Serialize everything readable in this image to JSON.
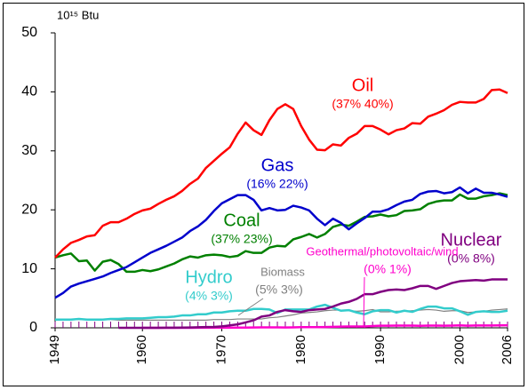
{
  "chart_data": {
    "type": "line",
    "y_label": "10¹⁵ Btu",
    "x": [
      1949,
      1950,
      1951,
      1952,
      1953,
      1954,
      1955,
      1956,
      1957,
      1958,
      1959,
      1960,
      1961,
      1962,
      1963,
      1964,
      1965,
      1966,
      1967,
      1968,
      1969,
      1970,
      1971,
      1972,
      1973,
      1974,
      1975,
      1976,
      1977,
      1978,
      1979,
      1980,
      1981,
      1982,
      1983,
      1984,
      1985,
      1986,
      1987,
      1988,
      1989,
      1990,
      1991,
      1992,
      1993,
      1994,
      1995,
      1996,
      1997,
      1998,
      1999,
      2000,
      2001,
      2002,
      2003,
      2004,
      2005,
      2006
    ],
    "xlim": [
      1949,
      2006
    ],
    "xticks": [
      1949,
      1960,
      1970,
      1980,
      1990,
      2000,
      2006
    ],
    "ylim": [
      0,
      50
    ],
    "yticks": [
      0,
      10,
      20,
      30,
      40,
      50
    ],
    "series": [
      {
        "name": "Oil",
        "share": "(37%  40%)",
        "color": "#ff0000",
        "values": [
          11.9,
          13.3,
          14.4,
          14.9,
          15.5,
          15.7,
          17.3,
          17.9,
          17.9,
          18.5,
          19.3,
          19.9,
          20.2,
          21.0,
          21.7,
          22.3,
          23.2,
          24.4,
          25.3,
          27.1,
          28.3,
          29.5,
          30.6,
          32.9,
          34.8,
          33.5,
          32.7,
          35.2,
          37.1,
          37.9,
          37.1,
          34.2,
          31.9,
          30.2,
          30.1,
          31.1,
          30.9,
          32.2,
          32.9,
          34.2,
          34.2,
          33.6,
          32.8,
          33.5,
          33.8,
          34.7,
          34.6,
          35.8,
          36.3,
          36.9,
          37.8,
          38.3,
          38.2,
          38.2,
          38.8,
          40.3,
          40.4,
          39.8
        ]
      },
      {
        "name": "Gas",
        "share": "(16%  22%)",
        "color": "#0000cc",
        "values": [
          5.1,
          5.9,
          7.0,
          7.5,
          7.9,
          8.3,
          8.7,
          9.3,
          9.8,
          10.3,
          11.1,
          11.9,
          12.7,
          13.3,
          13.9,
          14.6,
          15.3,
          16.4,
          17.2,
          18.3,
          19.8,
          21.1,
          21.8,
          22.5,
          22.5,
          21.7,
          19.9,
          20.3,
          19.9,
          20.0,
          20.7,
          20.4,
          19.9,
          18.5,
          17.4,
          18.5,
          17.8,
          16.7,
          17.7,
          18.6,
          19.7,
          19.7,
          20.1,
          20.8,
          21.4,
          21.7,
          22.7,
          23.1,
          23.2,
          22.8,
          23.0,
          23.8,
          22.8,
          23.6,
          22.9,
          22.9,
          22.6,
          22.2
        ]
      },
      {
        "name": "Coal",
        "share": "(37%  23%)",
        "color": "#008000",
        "values": [
          11.9,
          12.3,
          12.6,
          11.3,
          11.4,
          9.7,
          11.2,
          11.5,
          10.8,
          9.5,
          9.5,
          9.8,
          9.6,
          9.9,
          10.4,
          10.9,
          11.6,
          12.1,
          11.9,
          12.3,
          12.4,
          12.3,
          12.0,
          12.2,
          13.0,
          12.7,
          12.7,
          13.6,
          13.9,
          13.8,
          15.0,
          15.4,
          15.9,
          15.3,
          15.9,
          17.1,
          17.5,
          17.3,
          18.0,
          18.8,
          18.9,
          19.2,
          18.9,
          19.1,
          19.8,
          19.9,
          20.1,
          21.0,
          21.4,
          21.6,
          21.6,
          22.6,
          21.9,
          21.9,
          22.3,
          22.5,
          22.8,
          22.5
        ]
      },
      {
        "name": "Nuclear",
        "share": "(0%  8%)",
        "color": "#800080",
        "values": [
          null,
          null,
          null,
          null,
          null,
          null,
          null,
          null,
          0,
          0,
          0,
          0,
          0,
          0,
          0.01,
          0.02,
          0.04,
          0.06,
          0.09,
          0.14,
          0.15,
          0.24,
          0.41,
          0.58,
          0.91,
          1.27,
          1.9,
          2.1,
          2.7,
          3.0,
          2.8,
          2.7,
          3.0,
          3.1,
          3.2,
          3.6,
          4.1,
          4.4,
          4.9,
          5.7,
          5.7,
          6.1,
          6.4,
          6.5,
          6.4,
          6.7,
          7.1,
          7.1,
          6.6,
          7.1,
          7.6,
          7.9,
          8.0,
          8.1,
          8.0,
          8.2,
          8.2,
          8.2
        ]
      },
      {
        "name": "Hydro",
        "share": "(4%  3%)",
        "color": "#33cccc",
        "values": [
          1.4,
          1.4,
          1.4,
          1.5,
          1.4,
          1.4,
          1.4,
          1.5,
          1.5,
          1.6,
          1.6,
          1.6,
          1.7,
          1.8,
          1.8,
          1.9,
          2.1,
          2.1,
          2.3,
          2.3,
          2.6,
          2.6,
          2.8,
          2.9,
          2.9,
          3.2,
          3.2,
          3.1,
          2.5,
          3.1,
          3.1,
          3.1,
          3.1,
          3.6,
          3.9,
          3.4,
          2.9,
          3.0,
          2.6,
          2.3,
          2.8,
          3.0,
          3.0,
          2.6,
          2.9,
          2.7,
          3.2,
          3.6,
          3.6,
          3.3,
          3.3,
          2.8,
          2.2,
          2.7,
          2.8,
          2.7,
          2.7,
          2.9
        ]
      },
      {
        "name": "Biomass",
        "share": "(5%  3%)",
        "color": "#808080",
        "values": [
          1.5,
          1.5,
          1.4,
          1.4,
          1.4,
          1.4,
          1.4,
          1.4,
          1.3,
          1.3,
          1.3,
          1.3,
          1.3,
          1.3,
          1.3,
          1.3,
          1.3,
          1.3,
          1.3,
          1.3,
          1.4,
          1.4,
          1.4,
          1.5,
          1.5,
          1.5,
          1.5,
          1.7,
          1.8,
          2.0,
          2.2,
          2.5,
          2.6,
          2.7,
          2.9,
          3.0,
          3.0,
          2.9,
          2.8,
          2.9,
          3.1,
          2.7,
          2.7,
          2.8,
          2.8,
          2.9,
          3.0,
          3.1,
          3.0,
          2.8,
          2.9,
          2.9,
          2.6,
          2.7,
          2.8,
          3.0,
          3.1,
          3.2
        ]
      },
      {
        "name": "Geothermal/photovoltaic/wind",
        "share": "(0%  1%)",
        "color": "#ff00cc",
        "values": [
          null,
          null,
          null,
          null,
          null,
          null,
          null,
          null,
          null,
          null,
          null,
          0.0,
          0.0,
          0.0,
          0.0,
          0.0,
          0.0,
          0.0,
          0.01,
          0.01,
          0.01,
          0.01,
          0.01,
          0.03,
          0.04,
          0.05,
          0.07,
          0.08,
          0.08,
          0.06,
          0.08,
          0.11,
          0.12,
          0.11,
          0.13,
          0.17,
          0.2,
          0.22,
          0.23,
          0.22,
          0.3,
          0.36,
          0.36,
          0.38,
          0.38,
          0.37,
          0.33,
          0.37,
          0.37,
          0.36,
          0.38,
          0.41,
          0.35,
          0.39,
          0.39,
          0.39,
          0.41,
          0.43
        ]
      }
    ]
  }
}
